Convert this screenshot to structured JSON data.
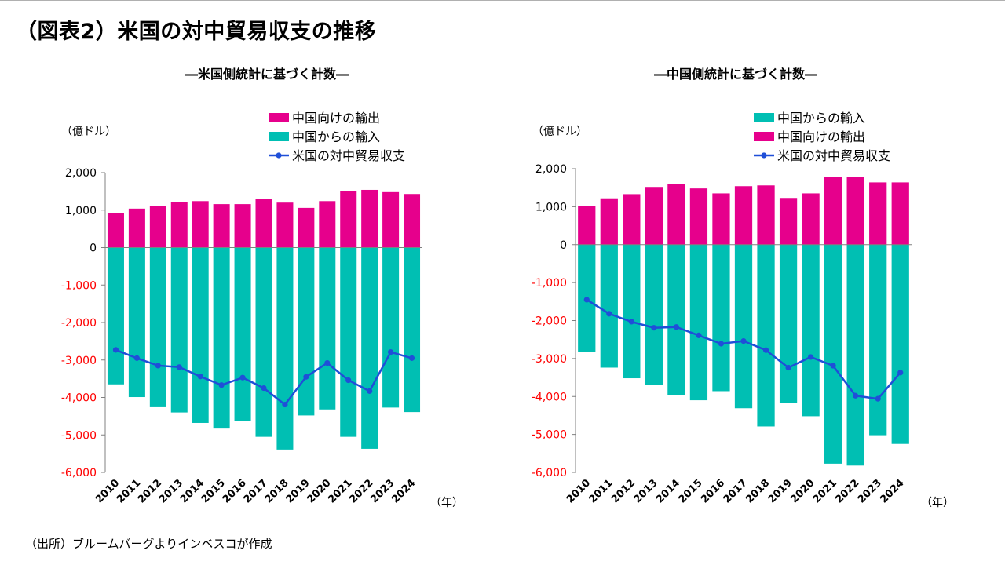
{
  "page": {
    "title": "（図表2）米国の対中貿易収支の推移",
    "source": "（出所）ブルームバーグよりインベスコが作成"
  },
  "colors": {
    "exports": "#e6008c",
    "imports": "#00bfb3",
    "balance": "#1f4fd8",
    "positive_tick": "#000000",
    "negative_tick": "#ff0000",
    "axis": "#808080"
  },
  "chart_data": [
    {
      "type": "bar",
      "title": "―米国側統計に基づく計数―",
      "unit_label": "（億ドル）",
      "xlabel": "（年）",
      "ylim": [
        -6000,
        2000
      ],
      "yticks": [
        2000,
        1000,
        0,
        -1000,
        -2000,
        -3000,
        -4000,
        -5000,
        -6000
      ],
      "ytick_labels": [
        "2,000",
        "1,000",
        "0",
        "-1,000",
        "-2,000",
        "-3,000",
        "-4,000",
        "-5,000",
        "-6,000"
      ],
      "legend_position": "top-right",
      "categories": [
        "2010",
        "2011",
        "2012",
        "2013",
        "2014",
        "2015",
        "2016",
        "2017",
        "2018",
        "2019",
        "2020",
        "2021",
        "2022",
        "2023",
        "2024"
      ],
      "legend": [
        {
          "name": "中国向けの輸出",
          "kind": "bar",
          "series_key": "exports"
        },
        {
          "name": "中国からの輸入",
          "kind": "bar",
          "series_key": "imports"
        },
        {
          "name": "米国の対中貿易収支",
          "kind": "line",
          "series_key": "balance"
        }
      ],
      "series": {
        "exports": {
          "name": "中国向けの輸出",
          "values": [
            920,
            1040,
            1100,
            1220,
            1240,
            1160,
            1160,
            1300,
            1200,
            1060,
            1240,
            1510,
            1540,
            1480,
            1430
          ]
        },
        "imports": {
          "name": "中国からの輸入",
          "values": [
            -3650,
            -3990,
            -4260,
            -4400,
            -4680,
            -4830,
            -4630,
            -5050,
            -5390,
            -4480,
            -4320,
            -5050,
            -5370,
            -4270,
            -4390
          ]
        },
        "balance": {
          "name": "米国の対中貿易収支",
          "values": [
            -2730,
            -2950,
            -3150,
            -3190,
            -3440,
            -3670,
            -3470,
            -3750,
            -4190,
            -3450,
            -3080,
            -3540,
            -3830,
            -2790,
            -2950
          ]
        }
      }
    },
    {
      "type": "bar",
      "title": "―中国側統計に基づく計数―",
      "unit_label": "（億ドル）",
      "xlabel": "（年）",
      "ylim": [
        -6000,
        2000
      ],
      "yticks": [
        2000,
        1000,
        0,
        -1000,
        -2000,
        -3000,
        -4000,
        -5000,
        -6000
      ],
      "ytick_labels": [
        "2,000",
        "1,000",
        "0",
        "-1,000",
        "-2,000",
        "-3,000",
        "-4,000",
        "-5,000",
        "-6,000"
      ],
      "legend_position": "top-right",
      "categories": [
        "2010",
        "2011",
        "2012",
        "2013",
        "2014",
        "2015",
        "2016",
        "2017",
        "2018",
        "2019",
        "2020",
        "2021",
        "2022",
        "2023",
        "2024"
      ],
      "legend": [
        {
          "name": "中国からの輸入",
          "kind": "bar",
          "series_key": "imports"
        },
        {
          "name": "中国向けの輸出",
          "kind": "bar",
          "series_key": "exports"
        },
        {
          "name": "米国の対中貿易収支",
          "kind": "line",
          "series_key": "balance"
        }
      ],
      "series": {
        "exports": {
          "name": "中国向けの輸出",
          "values": [
            1020,
            1220,
            1330,
            1520,
            1590,
            1480,
            1350,
            1540,
            1560,
            1230,
            1350,
            1790,
            1780,
            1640,
            1640
          ]
        },
        "imports": {
          "name": "中国からの輸入",
          "values": [
            -2830,
            -3240,
            -3520,
            -3690,
            -3960,
            -4100,
            -3860,
            -4310,
            -4790,
            -4180,
            -4520,
            -5770,
            -5820,
            -5020,
            -5250
          ]
        },
        "balance": {
          "name": "米国の対中貿易収支",
          "values": [
            -1450,
            -1820,
            -2030,
            -2190,
            -2170,
            -2390,
            -2610,
            -2540,
            -2780,
            -3240,
            -2960,
            -3190,
            -3980,
            -4060,
            -3370
          ]
        }
      }
    }
  ]
}
